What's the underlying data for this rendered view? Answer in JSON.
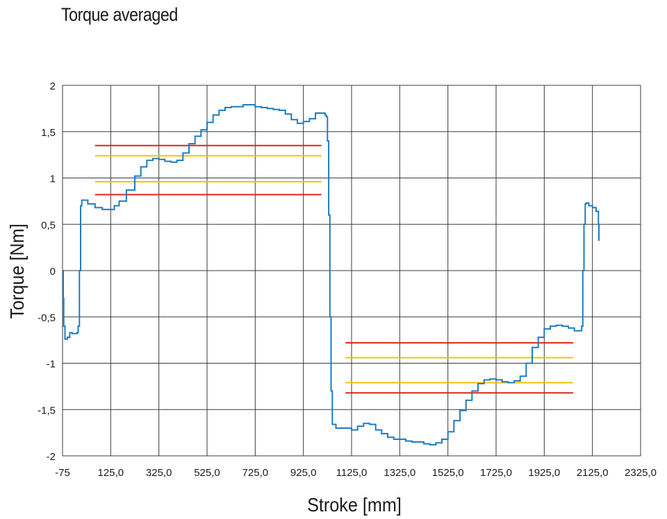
{
  "chart_data": {
    "type": "line",
    "title": "Torque averaged",
    "xlabel": "Stroke [mm]",
    "ylabel": "Torque [Nm]",
    "xlim": [
      -75,
      2325
    ],
    "ylim": [
      -2,
      2
    ],
    "grid": true,
    "x_ticks": [
      -75,
      125,
      325,
      525,
      725,
      925,
      1125,
      1325,
      1525,
      1725,
      1925,
      2125,
      2325
    ],
    "x_tick_labels": [
      "-75",
      "125,0",
      "325,0",
      "525,0",
      "725,0",
      "925,0",
      "1125,0",
      "1325,0",
      "1525,0",
      "1725,0",
      "1925,0",
      "2125,0",
      "2325,0"
    ],
    "y_ticks": [
      2,
      1.5,
      1,
      0.5,
      0,
      -0.5,
      -1,
      -1.5,
      -2
    ],
    "y_tick_labels": [
      "2",
      "1,5",
      "1",
      "0,5",
      "0",
      "-0,5",
      "-1",
      "-1,5",
      "-2"
    ],
    "series": [
      {
        "color": "#1f7bbf",
        "x": [
          -75,
          -72,
          -70,
          -65,
          -55,
          -45,
          -35,
          -15,
          -10,
          -5,
          0,
          5,
          30,
          60,
          90,
          110,
          140,
          160,
          190,
          225,
          250,
          275,
          300,
          325,
          350,
          375,
          400,
          425,
          450,
          475,
          500,
          525,
          550,
          575,
          600,
          625,
          650,
          675,
          700,
          725,
          750,
          775,
          800,
          825,
          850,
          875,
          900,
          925,
          950,
          975,
          1000,
          1015,
          1020,
          1025,
          1030,
          1035,
          1040,
          1045,
          1060,
          1090,
          1125,
          1150,
          1175,
          1200,
          1225,
          1250,
          1275,
          1300,
          1325,
          1350,
          1375,
          1400,
          1425,
          1450,
          1475,
          1500,
          1525,
          1550,
          1575,
          1600,
          1625,
          1650,
          1675,
          1700,
          1725,
          1750,
          1775,
          1800,
          1825,
          1850,
          1875,
          1900,
          1925,
          1950,
          1975,
          2000,
          2025,
          2050,
          2070,
          2080,
          2085,
          2090,
          2095,
          2100,
          2110,
          2125,
          2140,
          2150,
          2152
        ],
        "y": [
          0.0,
          -0.3,
          -0.6,
          -0.74,
          -0.72,
          -0.67,
          -0.68,
          -0.67,
          -0.6,
          0.0,
          0.7,
          0.76,
          0.72,
          0.68,
          0.66,
          0.66,
          0.7,
          0.75,
          0.87,
          1.02,
          1.12,
          1.19,
          1.21,
          1.2,
          1.18,
          1.17,
          1.19,
          1.27,
          1.37,
          1.45,
          1.52,
          1.6,
          1.68,
          1.73,
          1.76,
          1.77,
          1.77,
          1.79,
          1.79,
          1.77,
          1.76,
          1.75,
          1.74,
          1.73,
          1.69,
          1.63,
          1.59,
          1.61,
          1.64,
          1.7,
          1.7,
          1.68,
          1.66,
          1.4,
          0.6,
          -0.5,
          -1.3,
          -1.66,
          -1.7,
          -1.7,
          -1.72,
          -1.68,
          -1.65,
          -1.66,
          -1.72,
          -1.76,
          -1.8,
          -1.82,
          -1.82,
          -1.84,
          -1.85,
          -1.85,
          -1.87,
          -1.88,
          -1.86,
          -1.82,
          -1.74,
          -1.62,
          -1.51,
          -1.4,
          -1.3,
          -1.22,
          -1.18,
          -1.17,
          -1.18,
          -1.2,
          -1.21,
          -1.19,
          -1.14,
          -1.0,
          -0.83,
          -0.72,
          -0.63,
          -0.6,
          -0.59,
          -0.6,
          -0.62,
          -0.65,
          -0.65,
          -0.6,
          0.0,
          0.5,
          0.72,
          0.73,
          0.7,
          0.68,
          0.64,
          0.5,
          0.32
        ]
      }
    ],
    "limit_lines": [
      {
        "color": "#e0231c",
        "y": 1.35,
        "x_range": [
          60,
          1000
        ]
      },
      {
        "color": "#f5c000",
        "y": 1.24,
        "x_range": [
          60,
          1000
        ]
      },
      {
        "color": "#f5c000",
        "y": 0.96,
        "x_range": [
          60,
          1000
        ]
      },
      {
        "color": "#e0231c",
        "y": 0.82,
        "x_range": [
          60,
          1000
        ]
      },
      {
        "color": "#e0231c",
        "y": -0.78,
        "x_range": [
          1100,
          2045
        ]
      },
      {
        "color": "#f5c000",
        "y": -0.94,
        "x_range": [
          1100,
          2045
        ]
      },
      {
        "color": "#f5c000",
        "y": -1.21,
        "x_range": [
          1100,
          2045
        ]
      },
      {
        "color": "#e0231c",
        "y": -1.32,
        "x_range": [
          1100,
          2045
        ]
      }
    ]
  }
}
